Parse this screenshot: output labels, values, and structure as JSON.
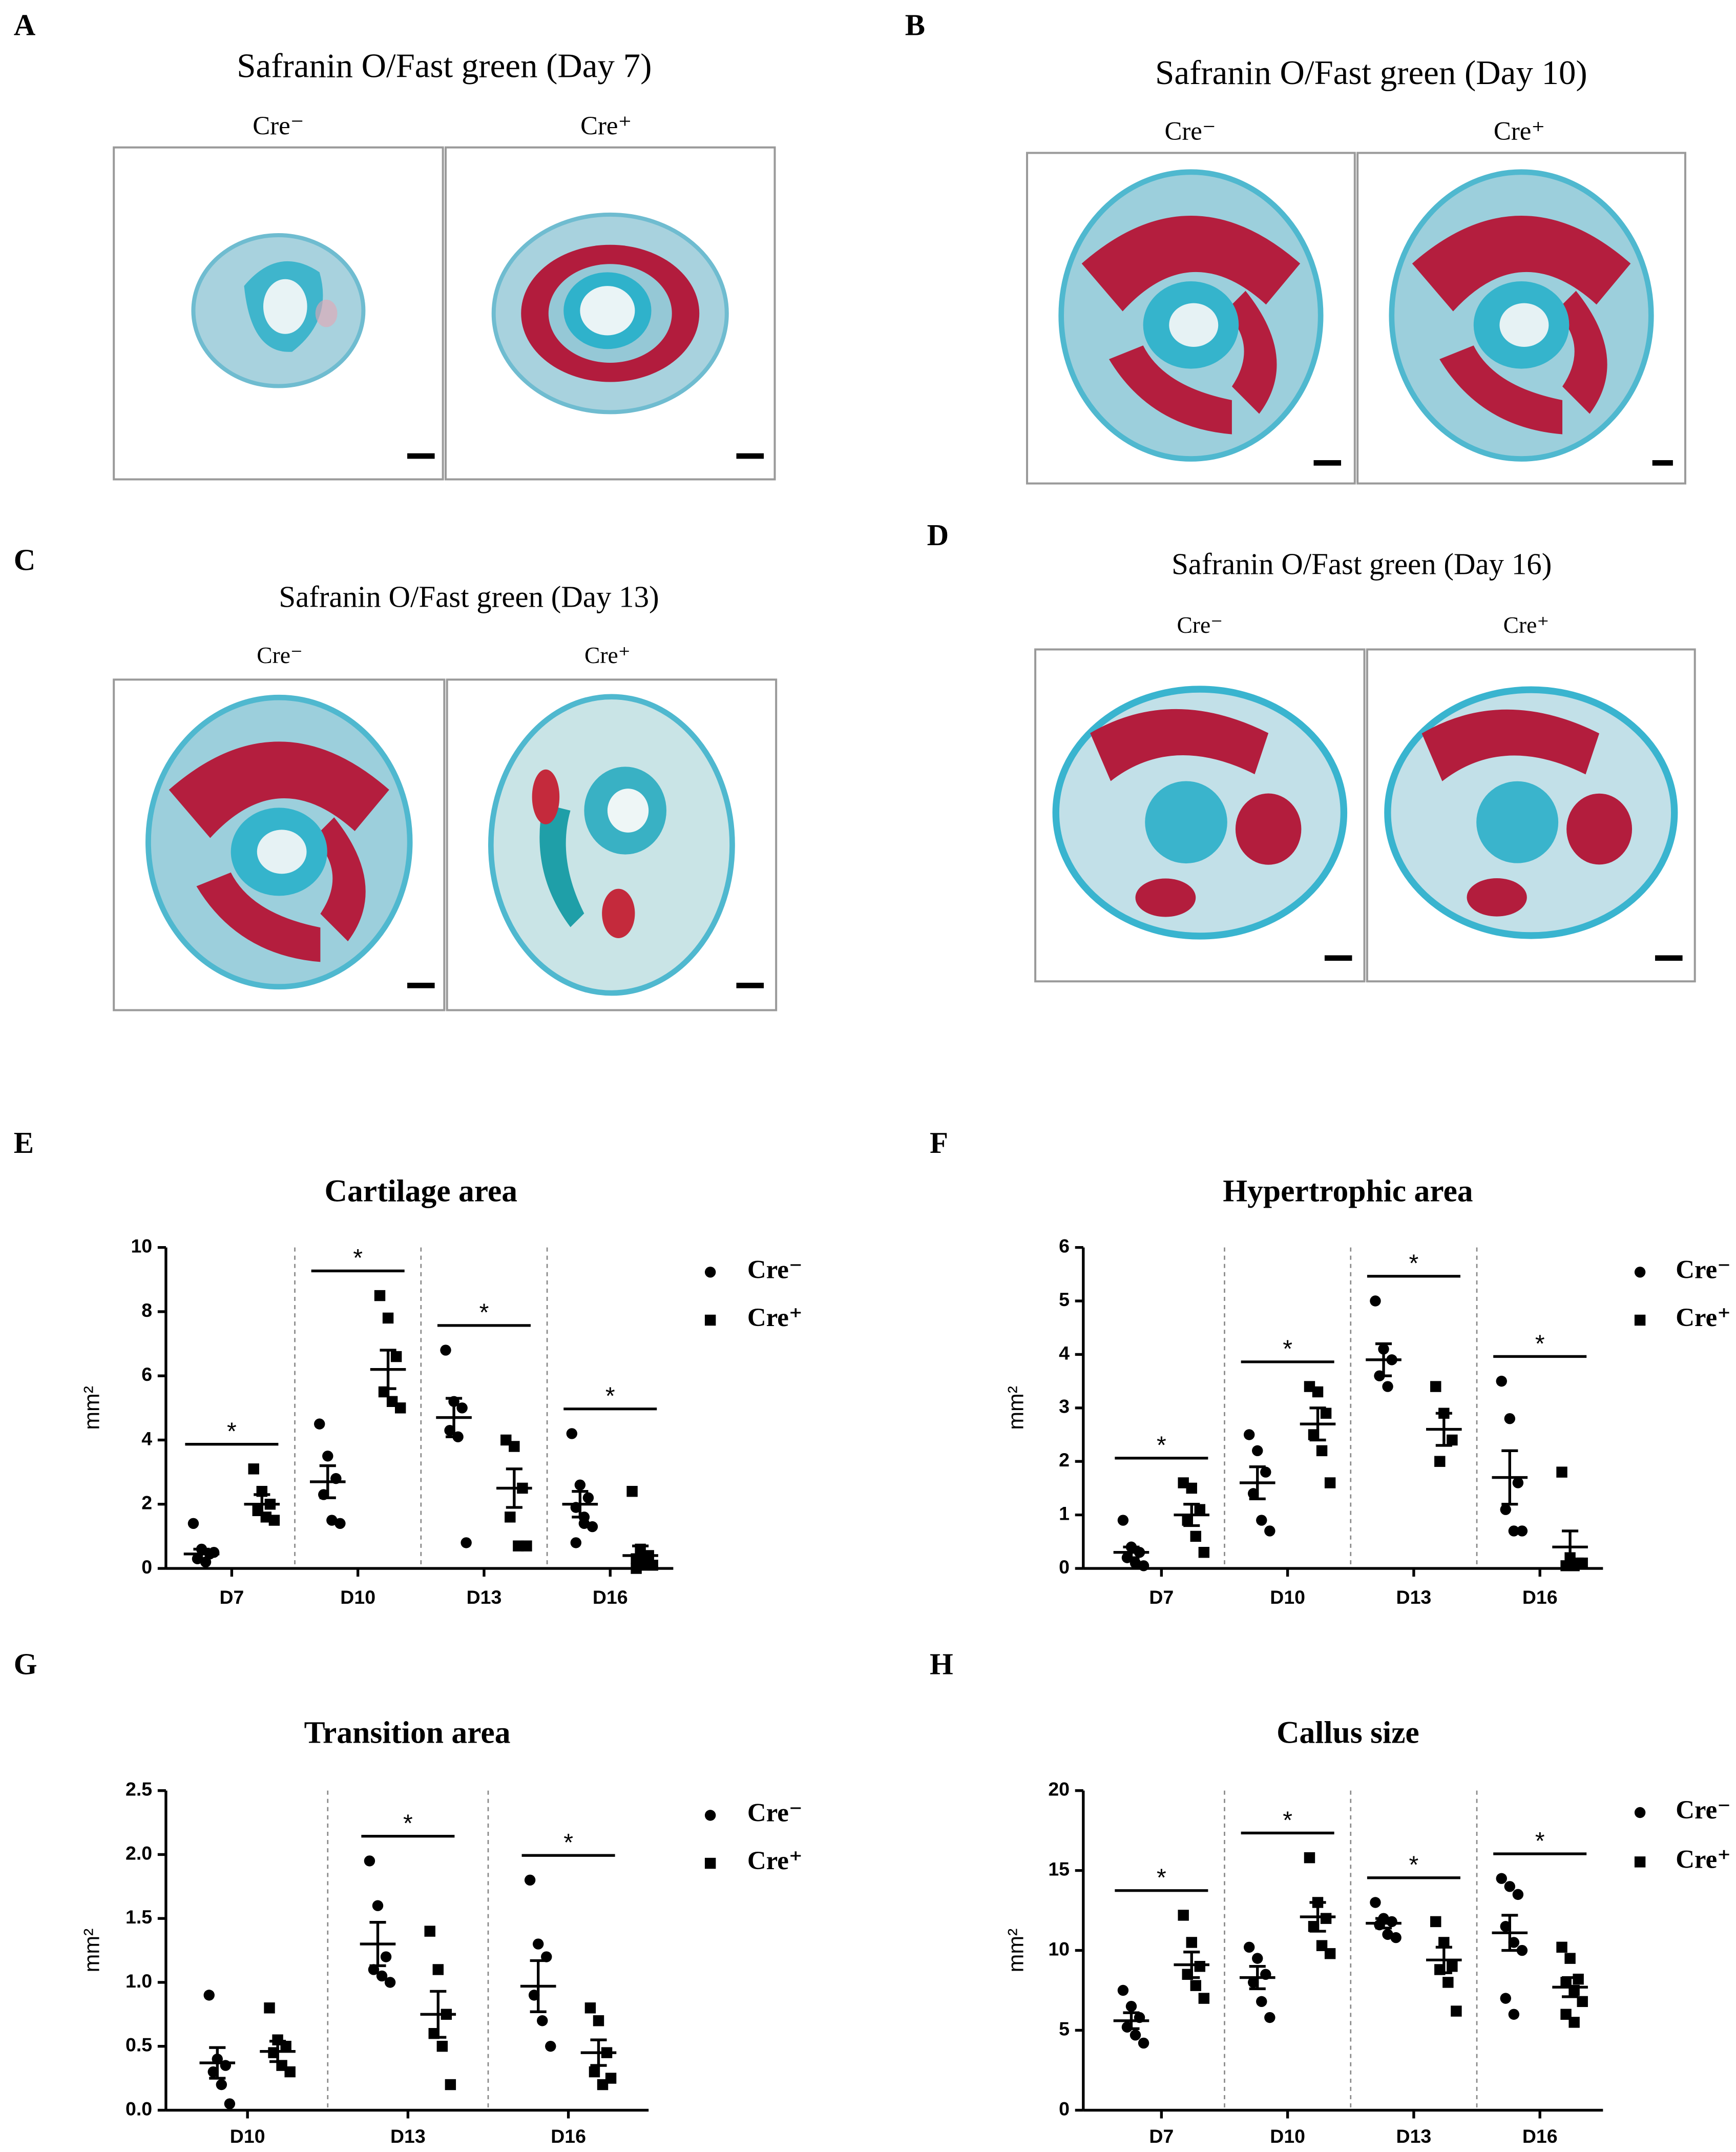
{
  "panels": [
    {
      "letter": "A",
      "title": "Safranin O/Fast green (Day 7)",
      "labels": [
        "Cre⁻",
        "Cre⁺"
      ]
    },
    {
      "letter": "B",
      "title": "Safranin O/Fast green (Day 10)",
      "labels": [
        "Cre⁻",
        "Cre⁺"
      ]
    },
    {
      "letter": "C",
      "title": "Safranin O/Fast green (Day 13)",
      "labels": [
        "Cre⁻",
        "Cre⁺"
      ]
    },
    {
      "letter": "D",
      "title": "Safranin O/Fast green (Day 16)",
      "labels": [
        "Cre⁻",
        "Cre⁺"
      ]
    }
  ],
  "chart_data": [
    {
      "type": "dotplot",
      "label": "E",
      "title": "Cartilage area",
      "ylabel": "mm²",
      "categories": [
        "D7",
        "D10",
        "D13",
        "D16"
      ],
      "series": [
        {
          "name": "Cre⁻",
          "color": "#000000",
          "marker": "circle",
          "values": [
            [
              1.4,
              0.6,
              0.45,
              0.3,
              0.2,
              0.5
            ],
            [
              4.5,
              3.5,
              2.8,
              2.3,
              1.5,
              1.4
            ],
            [
              6.8,
              5.2,
              5.0,
              4.3,
              4.1,
              0.8
            ],
            [
              4.2,
              2.6,
              2.2,
              1.9,
              1.6,
              1.3,
              0.8,
              1.4
            ]
          ],
          "means": [
            0.45,
            2.7,
            4.7,
            2.0
          ],
          "errors": [
            0.15,
            0.5,
            0.6,
            0.4
          ]
        },
        {
          "name": "Cre⁺",
          "color": "#000000",
          "marker": "square",
          "values": [
            [
              3.1,
              2.4,
              2.0,
              1.8,
              1.6,
              1.5
            ],
            [
              8.5,
              7.8,
              6.6,
              5.5,
              5.2,
              5.0
            ],
            [
              4.0,
              3.8,
              2.5,
              1.6,
              0.7,
              0.7
            ],
            [
              2.4,
              0.6,
              0.4,
              0.3,
              0.2,
              0.1,
              0.0,
              0.1
            ]
          ],
          "means": [
            2.0,
            6.2,
            2.5,
            0.4
          ],
          "errors": [
            0.3,
            0.6,
            0.6,
            0.3
          ]
        }
      ],
      "significance": [
        "*",
        "*",
        "*",
        "*"
      ],
      "ylim": [
        0,
        10
      ],
      "yticks": [
        0,
        2,
        4,
        6,
        8,
        10
      ],
      "separators": true
    },
    {
      "type": "dotplot",
      "label": "F",
      "title": "Hypertrophic area",
      "ylabel": "mm²",
      "categories": [
        "D7",
        "D10",
        "D13",
        "D16"
      ],
      "series": [
        {
          "name": "Cre⁻",
          "color": "#000000",
          "marker": "circle",
          "values": [
            [
              0.9,
              0.4,
              0.3,
              0.2,
              0.1,
              0.05
            ],
            [
              2.5,
              2.2,
              1.8,
              1.4,
              0.9,
              0.7
            ],
            [
              5.0,
              4.1,
              3.9,
              3.6,
              3.4
            ],
            [
              3.5,
              2.8,
              1.6,
              1.1,
              0.7,
              0.7
            ]
          ],
          "means": [
            0.3,
            1.6,
            3.9,
            1.7
          ],
          "errors": [
            0.1,
            0.3,
            0.3,
            0.5
          ]
        },
        {
          "name": "Cre⁺",
          "color": "#000000",
          "marker": "square",
          "values": [
            [
              1.6,
              1.5,
              1.1,
              0.9,
              0.6,
              0.3
            ],
            [
              3.4,
              3.3,
              2.9,
              2.5,
              2.2,
              1.6
            ],
            [
              3.4,
              2.9,
              2.4,
              2.0
            ],
            [
              1.8,
              0.2,
              0.1,
              0.05,
              0.05,
              0.1
            ]
          ],
          "means": [
            1.0,
            2.7,
            2.6,
            0.4
          ],
          "errors": [
            0.2,
            0.3,
            0.3,
            0.3
          ]
        }
      ],
      "significance": [
        "*",
        "*",
        "*",
        "*"
      ],
      "ylim": [
        0,
        6
      ],
      "yticks": [
        0,
        1,
        2,
        3,
        4,
        5,
        6
      ],
      "separators": true
    },
    {
      "type": "dotplot",
      "label": "G",
      "title": "Transition area",
      "ylabel": "mm²",
      "categories": [
        "D10",
        "D13",
        "D16"
      ],
      "series": [
        {
          "name": "Cre⁻",
          "color": "#000000",
          "marker": "circle",
          "values": [
            [
              0.9,
              0.4,
              0.35,
              0.3,
              0.2,
              0.05
            ],
            [
              1.95,
              1.6,
              1.2,
              1.1,
              1.05,
              1.0
            ],
            [
              1.8,
              1.3,
              1.2,
              0.9,
              0.7,
              0.5
            ]
          ],
          "means": [
            0.37,
            1.3,
            0.97
          ],
          "errors": [
            0.12,
            0.17,
            0.2
          ]
        },
        {
          "name": "Cre⁺",
          "color": "#000000",
          "marker": "square",
          "values": [
            [
              0.8,
              0.55,
              0.5,
              0.45,
              0.35,
              0.3
            ],
            [
              1.4,
              1.1,
              0.75,
              0.6,
              0.5,
              0.2
            ],
            [
              0.8,
              0.7,
              0.45,
              0.3,
              0.2,
              0.25
            ]
          ],
          "means": [
            0.46,
            0.75,
            0.45
          ],
          "errors": [
            0.08,
            0.18,
            0.1
          ]
        }
      ],
      "significance": [
        null,
        "*",
        "*"
      ],
      "ylim": [
        0,
        2.5
      ],
      "yticks": [
        {
          "value": 0,
          "label": "0.0"
        },
        0.5,
        {
          "value": 1,
          "label": "1.0"
        },
        1.5,
        {
          "value": 2,
          "label": "2.0"
        },
        2.5
      ],
      "separators": true
    },
    {
      "type": "dotplot",
      "label": "H",
      "title": "Callus size",
      "ylabel": "mm²",
      "categories": [
        "D7",
        "D10",
        "D13",
        "D16"
      ],
      "series": [
        {
          "name": "Cre⁻",
          "color": "#000000",
          "marker": "circle",
          "values": [
            [
              7.5,
              6.5,
              5.8,
              5.2,
              4.7,
              4.2
            ],
            [
              10.2,
              9.5,
              8.5,
              8.0,
              6.8,
              5.8
            ],
            [
              13.0,
              12.0,
              11.8,
              11.6,
              11.0,
              10.8
            ],
            [
              14.5,
              14.0,
              13.5,
              11.5,
              10.5,
              10.0,
              7.0,
              6.0
            ]
          ],
          "means": [
            5.6,
            8.3,
            11.7,
            11.1
          ],
          "errors": [
            0.5,
            0.7,
            0.3,
            1.1
          ]
        },
        {
          "name": "Cre⁺",
          "color": "#000000",
          "marker": "square",
          "values": [
            [
              12.2,
              10.5,
              9.0,
              8.5,
              7.8,
              7.0
            ],
            [
              15.8,
              13.0,
              12.0,
              11.5,
              10.3,
              9.8
            ],
            [
              11.8,
              10.5,
              9.0,
              8.8,
              8.0,
              6.2
            ],
            [
              10.2,
              9.5,
              8.2,
              8.0,
              7.5,
              6.8,
              6.0,
              5.5
            ]
          ],
          "means": [
            9.1,
            12.1,
            9.4,
            7.7
          ],
          "errors": [
            0.8,
            0.9,
            0.8,
            0.6
          ]
        }
      ],
      "significance": [
        "*",
        "*",
        "*",
        "*"
      ],
      "ylim": [
        0,
        20
      ],
      "yticks": [
        0,
        5,
        10,
        15,
        20
      ],
      "separators": true
    }
  ]
}
